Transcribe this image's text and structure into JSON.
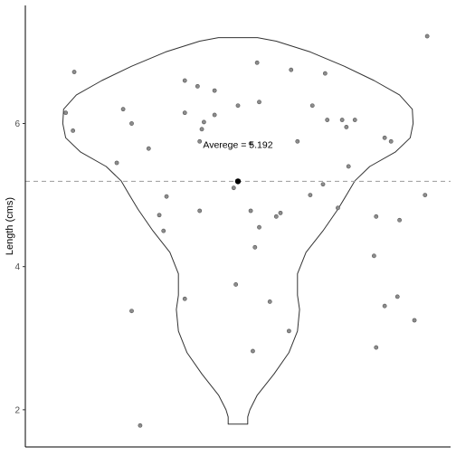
{
  "chart_data": {
    "type": "scatter",
    "subtype": "violin-with-jitter",
    "ylabel": "Length (cms)",
    "xlabel": "",
    "yticks": [
      2,
      4,
      6
    ],
    "ylim": [
      1.5,
      7.65
    ],
    "xlim": [
      0,
      1
    ],
    "grid": false,
    "mean": 5.192,
    "mean_label": "Averege = 5.192",
    "colors": {
      "points": "#8c8c8c",
      "point_stroke": "#555555",
      "violin": "#333333",
      "mean_line": "#a6a6a6",
      "mean_point": "#000000",
      "axis": "#000000"
    },
    "violin_profile": [
      [
        1.8,
        0.023
      ],
      [
        1.9,
        0.023
      ],
      [
        2.0,
        0.028
      ],
      [
        2.2,
        0.045
      ],
      [
        2.5,
        0.085
      ],
      [
        2.8,
        0.12
      ],
      [
        3.1,
        0.14
      ],
      [
        3.4,
        0.145
      ],
      [
        3.6,
        0.14
      ],
      [
        3.9,
        0.14
      ],
      [
        4.2,
        0.16
      ],
      [
        4.5,
        0.2
      ],
      [
        4.8,
        0.235
      ],
      [
        5.0,
        0.255
      ],
      [
        5.2,
        0.275
      ],
      [
        5.4,
        0.31
      ],
      [
        5.6,
        0.37
      ],
      [
        5.8,
        0.405
      ],
      [
        6.0,
        0.412
      ],
      [
        6.2,
        0.41
      ],
      [
        6.4,
        0.38
      ],
      [
        6.6,
        0.32
      ],
      [
        6.8,
        0.25
      ],
      [
        7.0,
        0.17
      ],
      [
        7.15,
        0.09
      ],
      [
        7.2,
        0.046
      ]
    ],
    "points": [
      {
        "x": 0.115,
        "y": 6.72
      },
      {
        "x": 0.095,
        "y": 6.15
      },
      {
        "x": 0.112,
        "y": 5.9
      },
      {
        "x": 0.23,
        "y": 6.2
      },
      {
        "x": 0.25,
        "y": 6.0
      },
      {
        "x": 0.29,
        "y": 5.65
      },
      {
        "x": 0.215,
        "y": 5.45
      },
      {
        "x": 0.332,
        "y": 4.98
      },
      {
        "x": 0.315,
        "y": 4.72
      },
      {
        "x": 0.325,
        "y": 4.5
      },
      {
        "x": 0.375,
        "y": 6.6
      },
      {
        "x": 0.405,
        "y": 6.52
      },
      {
        "x": 0.445,
        "y": 6.46
      },
      {
        "x": 0.375,
        "y": 6.15
      },
      {
        "x": 0.42,
        "y": 6.02
      },
      {
        "x": 0.445,
        "y": 6.12
      },
      {
        "x": 0.415,
        "y": 5.92
      },
      {
        "x": 0.41,
        "y": 5.75
      },
      {
        "x": 0.5,
        "y": 6.25
      },
      {
        "x": 0.55,
        "y": 6.3
      },
      {
        "x": 0.545,
        "y": 6.85
      },
      {
        "x": 0.625,
        "y": 6.75
      },
      {
        "x": 0.705,
        "y": 6.7
      },
      {
        "x": 0.675,
        "y": 6.25
      },
      {
        "x": 0.71,
        "y": 6.05
      },
      {
        "x": 0.745,
        "y": 6.05
      },
      {
        "x": 0.775,
        "y": 6.05
      },
      {
        "x": 0.755,
        "y": 5.95
      },
      {
        "x": 0.845,
        "y": 5.8
      },
      {
        "x": 0.86,
        "y": 5.75
      },
      {
        "x": 0.64,
        "y": 5.75
      },
      {
        "x": 0.53,
        "y": 5.72
      },
      {
        "x": 0.76,
        "y": 5.4
      },
      {
        "x": 0.7,
        "y": 5.15
      },
      {
        "x": 0.67,
        "y": 5.0
      },
      {
        "x": 0.49,
        "y": 5.1
      },
      {
        "x": 0.735,
        "y": 4.82
      },
      {
        "x": 0.41,
        "y": 4.78
      },
      {
        "x": 0.53,
        "y": 4.78
      },
      {
        "x": 0.59,
        "y": 4.7
      },
      {
        "x": 0.6,
        "y": 4.75
      },
      {
        "x": 0.55,
        "y": 4.55
      },
      {
        "x": 0.54,
        "y": 4.27
      },
      {
        "x": 0.825,
        "y": 4.7
      },
      {
        "x": 0.88,
        "y": 4.65
      },
      {
        "x": 0.94,
        "y": 5.0
      },
      {
        "x": 0.82,
        "y": 4.15
      },
      {
        "x": 0.945,
        "y": 7.22
      },
      {
        "x": 0.25,
        "y": 3.38
      },
      {
        "x": 0.375,
        "y": 3.55
      },
      {
        "x": 0.495,
        "y": 3.75
      },
      {
        "x": 0.575,
        "y": 3.51
      },
      {
        "x": 0.62,
        "y": 3.1
      },
      {
        "x": 0.535,
        "y": 2.82
      },
      {
        "x": 0.845,
        "y": 3.45
      },
      {
        "x": 0.875,
        "y": 3.58
      },
      {
        "x": 0.915,
        "y": 3.25
      },
      {
        "x": 0.825,
        "y": 2.87
      },
      {
        "x": 0.27,
        "y": 1.78
      }
    ]
  }
}
